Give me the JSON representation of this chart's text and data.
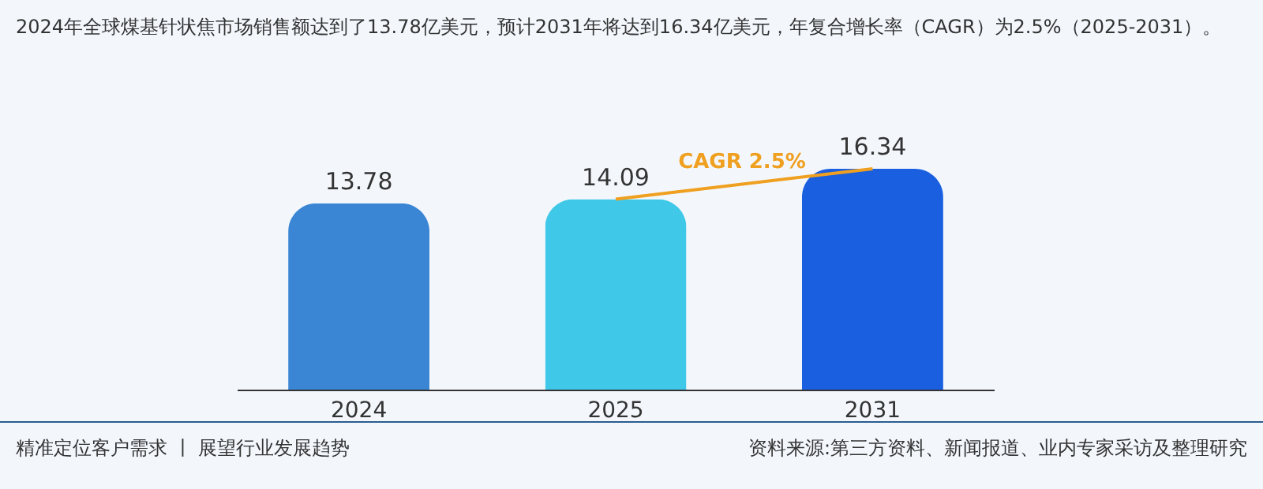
{
  "chart_data": {
    "type": "bar",
    "title": "2024年全球煤基针状焦市场销售额达到了13.78亿美元，预计2031年将达到16.34亿美元，年复合增长率（CAGR）为2.5%（2025-2031）。",
    "categories": [
      "2024",
      "2025",
      "2031"
    ],
    "values": [
      13.78,
      14.09,
      16.34
    ],
    "colors": [
      "#3a86d4",
      "#40c8e8",
      "#1a5fe0"
    ],
    "data_labels": true,
    "annotations": [
      "CAGR 2.5%",
      "精准定位客户需求 丨 展望行业发展趋势",
      "资料来源:第三方资料、新闻报道、业内专家采访及整理研究"
    ]
  }
}
